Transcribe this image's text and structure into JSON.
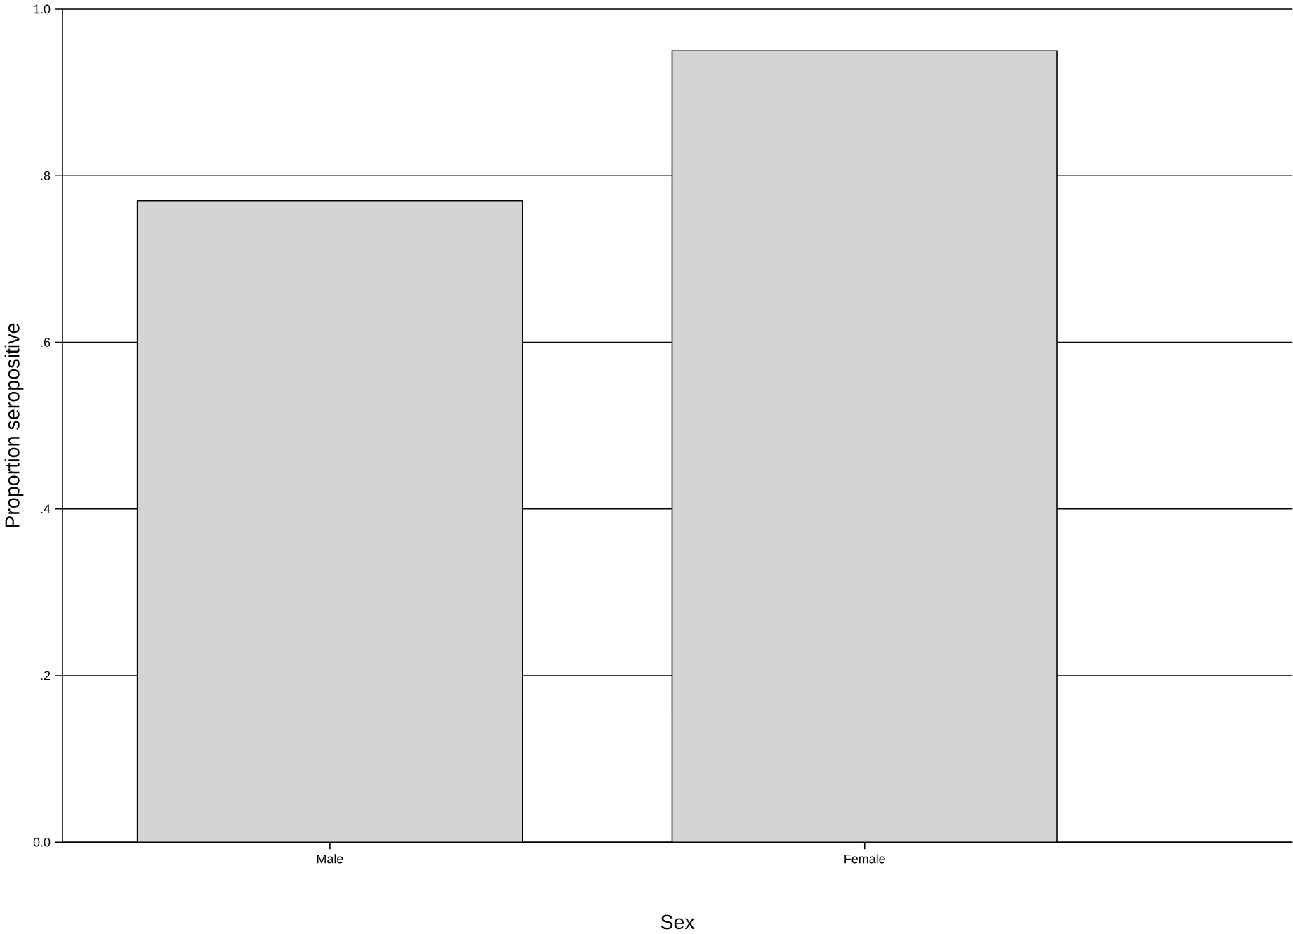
{
  "chart_data": {
    "type": "bar",
    "xlabel": "Sex",
    "ylabel": "Proportion seropositive",
    "categories": [
      "Male",
      "Female"
    ],
    "values": [
      0.77,
      0.95
    ],
    "color": "#d4d4d4",
    "ylim": [
      0,
      1
    ],
    "yticks": [
      {
        "value": 0,
        "label": "0.0"
      },
      {
        "value": 0.2,
        "label": ".2"
      },
      {
        "value": 0.4,
        "label": ".4"
      },
      {
        "value": 0.6,
        "label": ".6"
      },
      {
        "value": 0.8,
        "label": ".8"
      },
      {
        "value": 1,
        "label": "1.0"
      }
    ],
    "grid": "y"
  }
}
